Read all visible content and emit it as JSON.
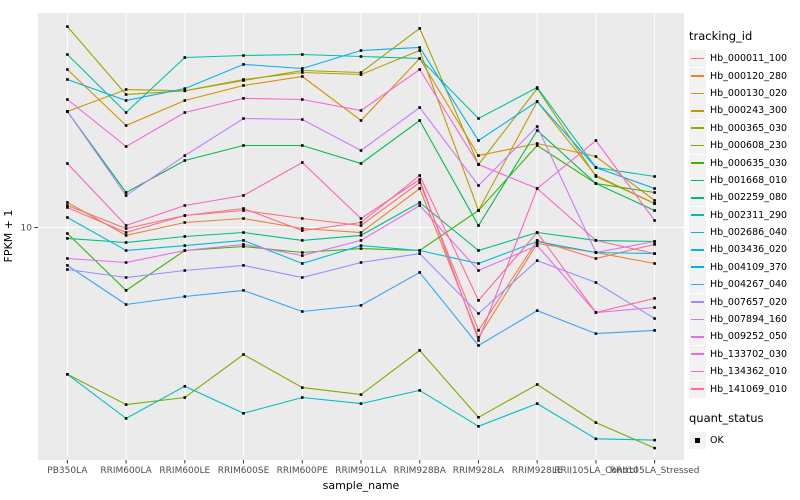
{
  "chart_data": {
    "type": "line",
    "title": "",
    "xlabel": "sample_name",
    "ylabel": "FPKM + 1",
    "y_scale": "log10",
    "y_ticks": [
      {
        "value": 10,
        "label": "10"
      }
    ],
    "panel_background": "#EBEBEB",
    "gridline_color": "#FFFFFF",
    "point_color": "#000000",
    "point_shape": "filled-square",
    "legend_position": "right",
    "categories": [
      "PB350LA",
      "RRIM600LA",
      "RRIM600LE",
      "RRIM600SE",
      "RRIM600PE",
      "RRIM901LA",
      "RRIM928BA",
      "RRIM928LA",
      "RRIM928LE",
      "RRII105LA_Control",
      "RRII105LA_Stressed"
    ],
    "legend": {
      "title": "tracking_id"
    },
    "quant_legend": {
      "title": "quant_status",
      "items": [
        {
          "label": "OK",
          "marker": "filled-square",
          "color": "#000000"
        }
      ]
    },
    "series": [
      {
        "tracking_id": "Hb_000011_100",
        "color": "#F8766D",
        "values": [
          11.98,
          9.92,
          11.04,
          11.5,
          10.77,
          10.17,
          14.48,
          4.29,
          8.99,
          7.75,
          8.7
        ]
      },
      {
        "tracking_id": "Hb_000120_280",
        "color": "#EA8331",
        "values": [
          12.28,
          9.37,
          10.42,
          10.77,
          9.92,
          9.6,
          13.78,
          4.05,
          8.77,
          8.14,
          7.44
        ]
      },
      {
        "tracking_id": "Hb_000130_020",
        "color": "#D89000",
        "values": [
          36.67,
          23.14,
          28.42,
          32.14,
          34.63,
          24.1,
          40.14,
          18.07,
          19.95,
          17.93,
          12.49
        ]
      },
      {
        "tracking_id": "Hb_000243_300",
        "color": "#C09B00",
        "values": [
          25.96,
          31.11,
          30.77,
          33.78,
          35.77,
          35.19,
          42.86,
          11.5,
          28.18,
          15.34,
          12.18
        ]
      },
      {
        "tracking_id": "Hb_000365_030",
        "color": "#A3A500",
        "values": [
          52.2,
          29.85,
          30.77,
          33.5,
          36.37,
          35.77,
          51.41,
          16.79,
          31.37,
          15.21,
          12.18
        ]
      },
      {
        "tracking_id": "Hb_000608_230",
        "color": "#7CAE00",
        "values": [
          2.99,
          2.33,
          2.47,
          3.52,
          2.68,
          2.53,
          3.64,
          2.1,
          2.75,
          2.01,
          1.63
        ]
      },
      {
        "tracking_id": "Hb_000635_030",
        "color": "#39B600",
        "values": [
          9.52,
          5.96,
          8.28,
          8.55,
          8.14,
          8.41,
          8.28,
          11.5,
          19.63,
          14.36,
          13.34
        ]
      },
      {
        "tracking_id": "Hb_001668_010",
        "color": "#00BB4E",
        "values": [
          25.96,
          13.34,
          17.35,
          19.63,
          19.63,
          16.93,
          24.1,
          10.17,
          22.2,
          14.36,
          11.5
        ]
      },
      {
        "tracking_id": "Hb_002259_080",
        "color": "#00BF7D",
        "values": [
          9.14,
          8.84,
          9.29,
          9.6,
          8.99,
          9.37,
          12.28,
          8.28,
          9.6,
          8.99,
          8.91
        ]
      },
      {
        "tracking_id": "Hb_002311_290",
        "color": "#00C1A3",
        "values": [
          41.48,
          25.74,
          40.46,
          41.14,
          41.48,
          40.8,
          40.14,
          24.51,
          31.62,
          16.38,
          15.21
        ]
      },
      {
        "tracking_id": "Hb_002686_040",
        "color": "#00BFC4",
        "values": [
          2.99,
          2.08,
          2.71,
          2.17,
          2.47,
          2.35,
          2.62,
          1.95,
          2.35,
          1.76,
          1.74
        ]
      },
      {
        "tracking_id": "Hb_003436_020",
        "color": "#00BBDA",
        "values": [
          10.86,
          8.28,
          8.62,
          8.99,
          7.44,
          8.62,
          8.28,
          7.44,
          8.91,
          8.14,
          8.07
        ]
      },
      {
        "tracking_id": "Hb_004109_370",
        "color": "#00B0F6",
        "values": [
          33.78,
          28.42,
          31.33,
          38.24,
          36.98,
          42.86,
          43.94,
          20.45,
          28.18,
          16.38,
          13.78
        ]
      },
      {
        "tracking_id": "Hb_004267_040",
        "color": "#35A2FF",
        "values": [
          7.32,
          5.31,
          5.67,
          5.96,
          5.01,
          5.27,
          6.91,
          3.79,
          5.05,
          4.18,
          4.29
        ]
      },
      {
        "tracking_id": "Hb_007657_020",
        "color": "#9590FF",
        "values": [
          7.08,
          6.63,
          7.02,
          7.32,
          6.63,
          7.5,
          8.07,
          4.93,
          7.62,
          6.36,
          4.73
        ]
      },
      {
        "tracking_id": "Hb_007894_160",
        "color": "#C77CFF",
        "values": [
          25.96,
          13.01,
          18.07,
          24.51,
          24.3,
          18.84,
          26.83,
          14.13,
          22.95,
          8.14,
          8.91
        ]
      },
      {
        "tracking_id": "Hb_009252_050",
        "color": "#E76BF3",
        "values": [
          7.75,
          7.5,
          8.28,
          8.7,
          7.94,
          8.99,
          11.98,
          7.02,
          8.62,
          4.97,
          5.18
        ]
      },
      {
        "tracking_id": "Hb_133702_030",
        "color": "#FA62DB",
        "values": [
          28.65,
          19.47,
          25.74,
          28.9,
          28.65,
          26.18,
          36.67,
          16.79,
          13.78,
          20.45,
          10.59
        ]
      },
      {
        "tracking_id": "Hb_134362_010",
        "color": "#FF62BC",
        "values": [
          16.93,
          10.17,
          11.98,
          13.01,
          17.06,
          10.77,
          14.84,
          3.95,
          13.78,
          8.99,
          8.07
        ]
      },
      {
        "tracking_id": "Hb_141069_010",
        "color": "#FF6A98",
        "values": [
          11.79,
          9.6,
          11.04,
          11.69,
          9.76,
          10.42,
          15.34,
          5.49,
          9.6,
          4.97,
          5.58
        ]
      }
    ]
  }
}
